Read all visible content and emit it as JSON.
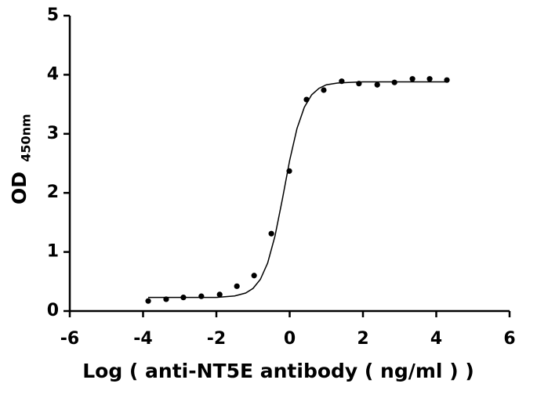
{
  "chart_data": {
    "type": "scatter",
    "x_label": "Log ( anti-NT5E antibody ( ng/ml )    )",
    "y_label": "OD",
    "y_label_subscript": "450nm",
    "xlim": [
      -6,
      6
    ],
    "xticks": [
      -6,
      -4,
      -2,
      0,
      2,
      4,
      6
    ],
    "ylim": [
      0,
      5
    ],
    "yticks": [
      0,
      1,
      2,
      3,
      4,
      5
    ],
    "series": [
      {
        "type": "scatter",
        "color": "#000000",
        "x": [
          -3.86,
          -3.37,
          -2.9,
          -2.41,
          -1.91,
          -1.44,
          -0.97,
          -0.5,
          -0.01,
          0.46,
          0.93,
          1.42,
          1.89,
          2.39,
          2.86,
          3.35,
          3.82,
          4.29
        ],
        "values": [
          0.17,
          0.2,
          0.23,
          0.25,
          0.28,
          0.42,
          0.6,
          1.31,
          2.37,
          3.58,
          3.74,
          3.89,
          3.85,
          3.83,
          3.87,
          3.93,
          3.93,
          3.91
        ]
      },
      {
        "type": "line",
        "color": "#000000",
        "x": [
          -3.86,
          -3,
          -2,
          -1.5,
          -1.2,
          -1,
          -0.8,
          -0.6,
          -0.4,
          -0.2,
          0,
          0.2,
          0.4,
          0.6,
          0.8,
          1,
          1.3,
          1.6,
          2,
          3,
          4.29
        ],
        "values": [
          0.23,
          0.23,
          0.231,
          0.255,
          0.305,
          0.383,
          0.535,
          0.814,
          1.27,
          1.89,
          2.55,
          3.09,
          3.45,
          3.66,
          3.77,
          3.83,
          3.86,
          3.87,
          3.88,
          3.88,
          3.88
        ]
      }
    ]
  }
}
